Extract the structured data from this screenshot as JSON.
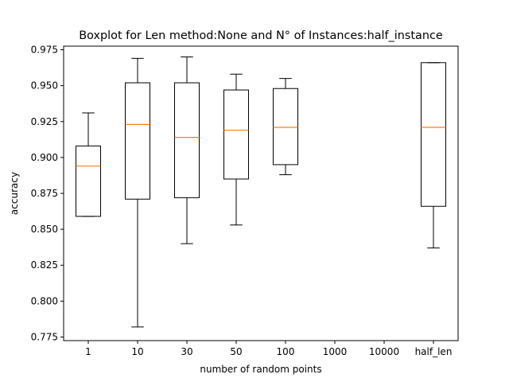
{
  "chart_data": {
    "type": "boxplot",
    "title": "Boxplot for Len method:None and N° of Instances:half_instance",
    "xlabel": "number of random points",
    "ylabel": "accuracy",
    "ylim": [
      0.7725,
      0.9775
    ],
    "yticks": [
      0.775,
      0.8,
      0.825,
      0.85,
      0.875,
      0.9,
      0.925,
      0.95,
      0.975
    ],
    "ytick_labels": [
      "0.775",
      "0.800",
      "0.825",
      "0.850",
      "0.875",
      "0.900",
      "0.925",
      "0.950",
      "0.975"
    ],
    "categories": [
      "1",
      "10",
      "30",
      "50",
      "100",
      "1000",
      "10000",
      "half_len"
    ],
    "grid": false,
    "box_color": "#000000",
    "median_color": "#ff7f0e",
    "boxes": [
      {
        "category": "1",
        "whisker_low": 0.859,
        "q1": 0.859,
        "median": 0.894,
        "q3": 0.908,
        "whisker_high": 0.931
      },
      {
        "category": "10",
        "whisker_low": 0.782,
        "q1": 0.871,
        "median": 0.923,
        "q3": 0.952,
        "whisker_high": 0.969
      },
      {
        "category": "30",
        "whisker_low": 0.84,
        "q1": 0.872,
        "median": 0.914,
        "q3": 0.952,
        "whisker_high": 0.97
      },
      {
        "category": "50",
        "whisker_low": 0.853,
        "q1": 0.885,
        "median": 0.919,
        "q3": 0.947,
        "whisker_high": 0.958
      },
      {
        "category": "100",
        "whisker_low": 0.888,
        "q1": 0.895,
        "median": 0.921,
        "q3": 0.948,
        "whisker_high": 0.955
      },
      {
        "category": "1000",
        "empty": true
      },
      {
        "category": "10000",
        "empty": true
      },
      {
        "category": "half_len",
        "whisker_low": 0.837,
        "q1": 0.866,
        "median": 0.921,
        "q3": 0.966,
        "whisker_high": 0.966
      }
    ]
  }
}
